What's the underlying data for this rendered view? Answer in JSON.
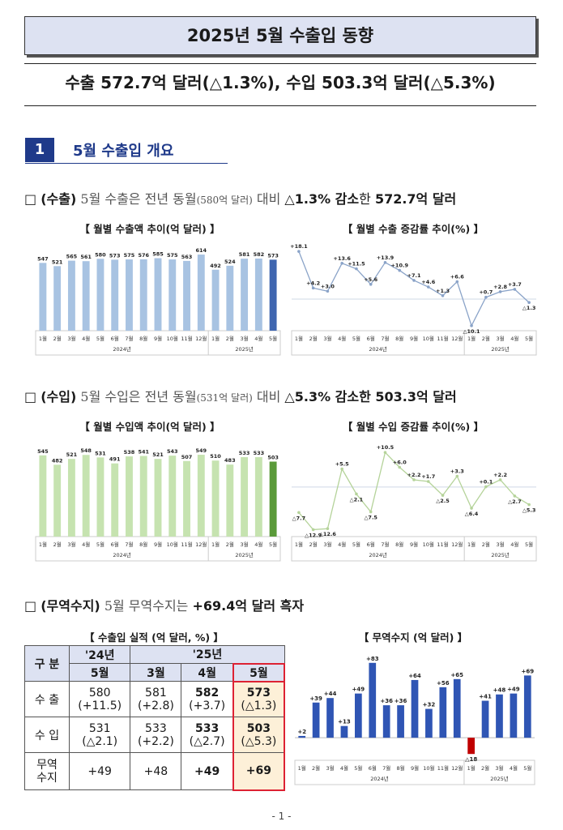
{
  "doc": {
    "title": "2025년 5월 수출입 동향",
    "subtitle": "수출 572.7억 달러(△1.3%), 수입 503.3억 달러(△5.3%)",
    "section_num": "1",
    "section_title": "5월 수출입 개요",
    "page_num": "- 1 -"
  },
  "export_bullet": {
    "box": "□",
    "label": "(수출)",
    "text1": " 5월 수출은 전년 동월",
    "text2": "(580억 달러)",
    "text3": " 대비 ",
    "highlight": "△1.3% 감소",
    "text4": "한 ",
    "amount": "572.7억 달러"
  },
  "import_bullet": {
    "box": "□",
    "label": "(수입)",
    "text1": " 5월 수입은 전년 동월",
    "text2": "(531억 달러)",
    "text3": " 대비 ",
    "highlight": "△5.3% 감소한 503.3억 달러"
  },
  "balance_bullet": {
    "box": "□",
    "label": "(무역수지)",
    "text1": " 5월 무역수지는 ",
    "highlight": "+69.4억 달러 흑자"
  },
  "chart_titles": {
    "export_amount": "【 월별 수출액 추이(억 달러) 】",
    "export_growth": "【 월별 수출 증감률 추이(%) 】",
    "import_amount": "【 월별 수입액 추이(억 달러) 】",
    "import_growth": "【 월별 수입 증감률 추이(%) 】",
    "results": "【 수출입 실적 (억 달러, %) 】",
    "balance": "【 무역수지 (억 달러) 】"
  },
  "colors": {
    "export_bar": "#a8c3e2",
    "export_bar_last": "#3f66b0",
    "import_bar": "#c6e3b0",
    "import_bar_last": "#5a9a3a",
    "balance_pos": "#2f55b4",
    "balance_neg": "#c00000",
    "line": "#8aa3c8",
    "accent": "#1f3a8a"
  },
  "chart_data": [
    {
      "type": "bar",
      "title": "【 월별 수출액 추이(억 달러) 】",
      "categories": [
        "1월",
        "2월",
        "3월",
        "4월",
        "5월",
        "6월",
        "7월",
        "8월",
        "9월",
        "10월",
        "11월",
        "12월",
        "1월",
        "2월",
        "3월",
        "4월",
        "5월"
      ],
      "year_groups": [
        "2024년",
        "2025년"
      ],
      "values": [
        547,
        521,
        565,
        561,
        580,
        573,
        575,
        576,
        585,
        575,
        563,
        614,
        492,
        524,
        581,
        582,
        573
      ],
      "labels": [
        "547",
        "521",
        "565",
        "561",
        "580",
        "573",
        "575",
        "576",
        "585",
        "575",
        "563",
        "614",
        "492",
        "524",
        "581",
        "582",
        "573"
      ],
      "ylim": [
        0,
        680
      ]
    },
    {
      "type": "line",
      "title": "【 월별 수출 증감률 추이(%) 】",
      "categories": [
        "1월",
        "2월",
        "3월",
        "4월",
        "5월",
        "6월",
        "7월",
        "8월",
        "9월",
        "10월",
        "11월",
        "12월",
        "1월",
        "2월",
        "3월",
        "4월",
        "5월"
      ],
      "year_groups": [
        "2024년",
        "2025년"
      ],
      "values": [
        18.1,
        4.2,
        3.0,
        13.6,
        11.5,
        5.6,
        13.9,
        10.9,
        7.1,
        4.6,
        1.3,
        6.6,
        -10.1,
        0.7,
        2.8,
        3.7,
        -1.3
      ],
      "labels": [
        "+18.1",
        "+4.2",
        "+3.0",
        "+13.6",
        "+11.5",
        "+5.6",
        "+13.9",
        "+10.9",
        "+7.1",
        "+4.6",
        "+1.3",
        "+6.6",
        "△10.1",
        "+0.7",
        "+2.8",
        "+3.7",
        "△1.3"
      ],
      "ylim": [
        -12,
        20
      ]
    },
    {
      "type": "bar",
      "title": "【 월별 수입액 추이(억 달러) 】",
      "categories": [
        "1월",
        "2월",
        "3월",
        "4월",
        "5월",
        "6월",
        "7월",
        "8월",
        "9월",
        "10월",
        "11월",
        "12월",
        "1월",
        "2월",
        "3월",
        "4월",
        "5월"
      ],
      "year_groups": [
        "2024년",
        "2025년"
      ],
      "values": [
        545,
        482,
        521,
        548,
        531,
        491,
        538,
        541,
        521,
        543,
        507,
        549,
        510,
        483,
        533,
        533,
        503
      ],
      "labels": [
        "545",
        "482",
        "521",
        "548",
        "531",
        "491",
        "538",
        "541",
        "521",
        "543",
        "507",
        "549",
        "510",
        "483",
        "533",
        "533",
        "503"
      ],
      "ylim": [
        0,
        620
      ]
    },
    {
      "type": "line",
      "title": "【 월별 수입 증감률 추이(%) 】",
      "categories": [
        "1월",
        "2월",
        "3월",
        "4월",
        "5월",
        "6월",
        "7월",
        "8월",
        "9월",
        "10월",
        "11월",
        "12월",
        "1월",
        "2월",
        "3월",
        "4월",
        "5월"
      ],
      "year_groups": [
        "2024년",
        "2025년"
      ],
      "values": [
        -7.7,
        -12.9,
        -12.6,
        5.5,
        -2.1,
        -7.5,
        10.5,
        6.0,
        2.2,
        1.7,
        -2.5,
        3.3,
        -6.4,
        0.1,
        2.2,
        -2.7,
        -5.3
      ],
      "labels": [
        "△7.7",
        "△12.9",
        "△12.6",
        "+5.5",
        "△2.1",
        "△7.5",
        "+10.5",
        "+6.0",
        "+2.2",
        "+1.7",
        "△2.5",
        "+3.3",
        "△6.4",
        "+0.1",
        "+2.2",
        "△2.7",
        "△5.3"
      ],
      "ylim": [
        -15,
        13
      ]
    },
    {
      "type": "bar",
      "title": "【 무역수지 (억 달러) 】",
      "categories": [
        "1월",
        "2월",
        "3월",
        "4월",
        "5월",
        "6월",
        "7월",
        "8월",
        "9월",
        "10월",
        "11월",
        "12월",
        "1월",
        "2월",
        "3월",
        "4월",
        "5월"
      ],
      "year_groups": [
        "2024년",
        "2025년"
      ],
      "values": [
        2,
        39,
        44,
        13,
        49,
        83,
        36,
        36,
        64,
        32,
        56,
        65,
        -18,
        41,
        48,
        49,
        69
      ],
      "labels": [
        "+2",
        "+39",
        "+44",
        "+13",
        "+49",
        "+83",
        "+36",
        "+36",
        "+64",
        "+32",
        "+56",
        "+65",
        "△18",
        "+41",
        "+48",
        "+49",
        "+69"
      ],
      "ylim": [
        -25,
        90
      ]
    }
  ],
  "results_table": {
    "col_label": "구 분",
    "year24": "'24년",
    "year25": "'25년",
    "months": [
      "5월",
      "3월",
      "4월",
      "5월"
    ],
    "rows": [
      {
        "name": "수 출",
        "values": [
          "580",
          "581",
          "582",
          "573"
        ],
        "changes": [
          "(+11.5)",
          "(+2.8)",
          "(+3.7)",
          "(△1.3)"
        ]
      },
      {
        "name": "수 입",
        "values": [
          "531",
          "533",
          "533",
          "503"
        ],
        "changes": [
          "(△2.1)",
          "(+2.2)",
          "(△2.7)",
          "(△5.3)"
        ]
      },
      {
        "name": "무역\n수지",
        "values": [
          "+49",
          "+48",
          "+49",
          "+69"
        ],
        "changes": [
          "",
          "",
          "",
          ""
        ]
      }
    ]
  }
}
